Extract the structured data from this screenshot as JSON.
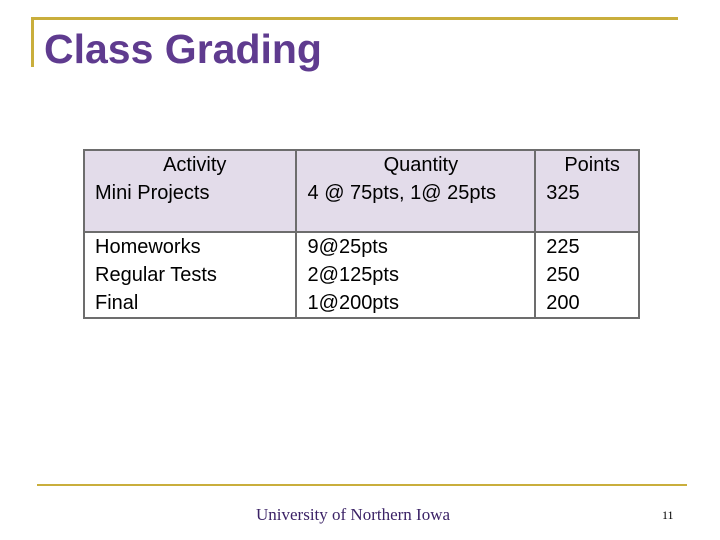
{
  "title": "Class Grading",
  "table": {
    "headers": [
      "Activity",
      "Quantity",
      "Points"
    ],
    "row1": {
      "activity": [
        "Mini Projects"
      ],
      "quantity": [
        "4 @ 75pts, 1@ 25pts"
      ],
      "points": [
        "325"
      ]
    },
    "row2": {
      "activity": [
        "Homeworks",
        "Regular Tests",
        "Final"
      ],
      "quantity": [
        "9@25pts",
        "2@125pts",
        "1@200pts"
      ],
      "points": [
        "225",
        "250",
        "200"
      ]
    }
  },
  "footer": "University of Northern Iowa",
  "page_number": "11",
  "colors": {
    "title": "#5f3b8f",
    "rule": "#c9ae3c",
    "shaded_row": "#e3dcea",
    "footer": "#3b2266"
  }
}
